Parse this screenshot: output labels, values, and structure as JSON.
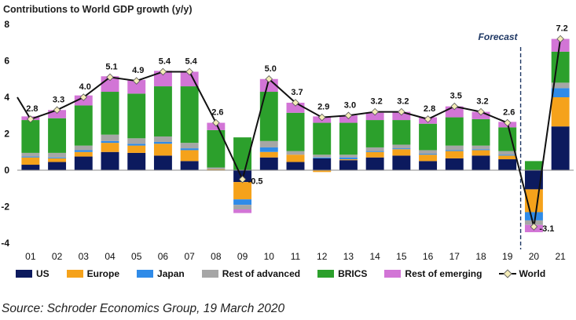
{
  "chart_data": {
    "type": "bar",
    "title": "Contributions to World GDP growth (y/y)",
    "categories": [
      "01",
      "02",
      "03",
      "04",
      "05",
      "06",
      "07",
      "08",
      "09",
      "10",
      "11",
      "12",
      "13",
      "14",
      "15",
      "16",
      "17",
      "18",
      "19",
      "20",
      "21"
    ],
    "ylim": [
      -4,
      8
    ],
    "yticks": [
      -4,
      -2,
      0,
      2,
      4,
      6,
      8
    ],
    "stacked": true,
    "series": [
      {
        "name": "US",
        "color": "#0c1a5e",
        "values": [
          0.3,
          0.45,
          0.75,
          1.0,
          0.95,
          0.8,
          0.5,
          0.0,
          -0.65,
          0.7,
          0.45,
          0.65,
          0.55,
          0.7,
          0.8,
          0.5,
          0.65,
          0.8,
          0.6,
          -1.05,
          2.4
        ]
      },
      {
        "name": "Europe",
        "color": "#f5a21b",
        "values": [
          0.4,
          0.2,
          0.25,
          0.5,
          0.4,
          0.65,
          0.6,
          0.05,
          -0.95,
          0.3,
          0.4,
          -0.1,
          0.05,
          0.3,
          0.35,
          0.35,
          0.4,
          0.3,
          0.2,
          -1.25,
          1.6
        ]
      },
      {
        "name": "Japan",
        "color": "#2f8be8",
        "values": [
          0.05,
          0.05,
          0.1,
          0.1,
          0.1,
          0.1,
          0.1,
          0.0,
          -0.3,
          0.25,
          0.0,
          0.05,
          0.1,
          0.05,
          0.05,
          0.05,
          0.05,
          0.05,
          0.05,
          -0.45,
          0.5
        ]
      },
      {
        "name": "Rest of advanced",
        "color": "#a6a6a6",
        "values": [
          0.2,
          0.25,
          0.25,
          0.35,
          0.3,
          0.3,
          0.3,
          0.1,
          -0.25,
          0.35,
          0.2,
          0.15,
          0.15,
          0.2,
          0.2,
          0.2,
          0.25,
          0.2,
          0.2,
          -0.25,
          0.3
        ]
      },
      {
        "name": "BRICS",
        "color": "#2ca02c",
        "values": [
          1.8,
          1.9,
          2.2,
          2.35,
          2.45,
          2.75,
          3.1,
          2.05,
          1.8,
          2.7,
          2.1,
          1.75,
          1.75,
          1.5,
          1.35,
          1.45,
          1.55,
          1.45,
          1.3,
          0.5,
          1.7
        ]
      },
      {
        "name": "Rest of emerging",
        "color": "#d275d6",
        "values": [
          0.2,
          0.45,
          0.55,
          0.85,
          0.75,
          0.85,
          0.8,
          0.4,
          -0.2,
          0.7,
          0.55,
          0.35,
          0.4,
          0.4,
          0.45,
          0.35,
          0.6,
          0.4,
          0.3,
          -0.4,
          0.7
        ]
      }
    ],
    "line": {
      "name": "World",
      "values": [
        2.8,
        3.3,
        4.0,
        5.1,
        4.9,
        5.4,
        5.4,
        2.6,
        -0.5,
        5.0,
        3.7,
        2.9,
        3.0,
        3.2,
        3.2,
        2.8,
        3.5,
        3.2,
        2.6,
        -3.1,
        7.2
      ],
      "labels": [
        "2.8",
        "3.3",
        "4.0",
        "5.1",
        "4.9",
        "5.4",
        "5.4",
        "2.6",
        "-0.5",
        "5.0",
        "3.7",
        "2.9",
        "3.0",
        "3.2",
        "3.2",
        "2.8",
        "3.5",
        "3.2",
        "2.6",
        "-3.1",
        "7.2"
      ],
      "start_value": 4.0
    },
    "forecast_label": "Forecast",
    "forecast_from_category": "20",
    "legend_position": "bottom",
    "grid": false
  },
  "legend": [
    {
      "label": "US",
      "color": "#0c1a5e",
      "kind": "bar"
    },
    {
      "label": "Europe",
      "color": "#f5a21b",
      "kind": "bar"
    },
    {
      "label": "Japan",
      "color": "#2f8be8",
      "kind": "bar"
    },
    {
      "label": "Rest of advanced",
      "color": "#a6a6a6",
      "kind": "bar"
    },
    {
      "label": "BRICS",
      "color": "#2ca02c",
      "kind": "bar"
    },
    {
      "label": "Rest of emerging",
      "color": "#d275d6",
      "kind": "bar"
    },
    {
      "label": "World",
      "color": "#111111",
      "kind": "line"
    }
  ],
  "source": "Source: Schroder Economics Group, 19 March 2020"
}
